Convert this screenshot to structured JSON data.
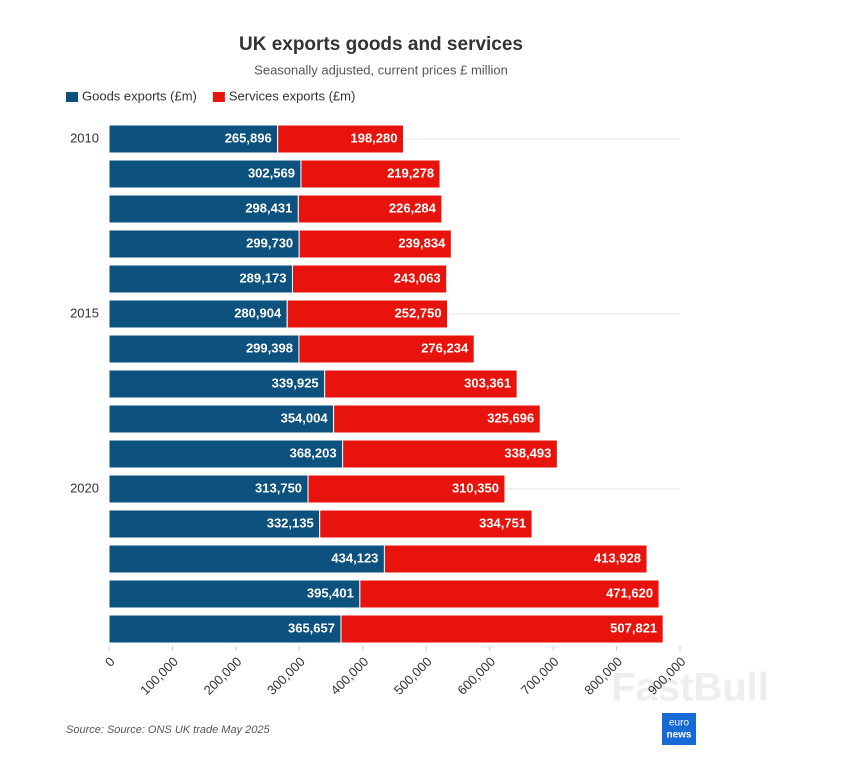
{
  "chart_data": {
    "type": "stacked-barh",
    "title": "UK exports goods and services",
    "subtitle": "Seasonally adjusted, current prices £ million",
    "categories": [
      "2010",
      null,
      null,
      null,
      null,
      "2015",
      null,
      null,
      null,
      null,
      "2020",
      null,
      null,
      null,
      null
    ],
    "series": [
      {
        "name": "Goods exports (£m)",
        "color": "#0d527e",
        "values": [
          265896,
          302569,
          298431,
          299730,
          289173,
          280904,
          299398,
          339925,
          354004,
          368203,
          313750,
          332135,
          434123,
          395401,
          365657
        ],
        "value_labels": [
          "265,896",
          "302,569",
          "298,431",
          "299,730",
          "289,173",
          "280,904",
          "299,398",
          "339,925",
          "354,004",
          "368,203",
          "313,750",
          "332,135",
          "434,123",
          "395,401",
          "365,657"
        ]
      },
      {
        "name": "Services exports (£m)",
        "color": "#e8130c",
        "values": [
          198280,
          219278,
          226284,
          239834,
          243063,
          252750,
          276234,
          303361,
          325696,
          338493,
          310350,
          334751,
          413928,
          471620,
          507821
        ],
        "value_labels": [
          "198,280",
          "219,278",
          "226,284",
          "239,834",
          "243,063",
          "252,750",
          "276,234",
          "303,361",
          "325,696",
          "338,493",
          "310,350",
          "334,751",
          "413,928",
          "471,620",
          "507,821"
        ]
      }
    ],
    "xlim": [
      0,
      900000
    ],
    "xticks": [
      0,
      {
        "value": 100000,
        "label": "100,000"
      },
      {
        "value": 200000,
        "label": "200,000"
      },
      {
        "value": 300000,
        "label": "300,000"
      },
      {
        "value": 400000,
        "label": "400,000"
      },
      {
        "value": 500000,
        "label": "500,000"
      },
      {
        "value": 600000,
        "label": "600,000"
      },
      {
        "value": 700000,
        "label": "700,000"
      },
      {
        "value": 800000,
        "label": "800,000"
      },
      {
        "value": 900000,
        "label": "900,000"
      }
    ],
    "legend": "top-left",
    "grid": true,
    "source": "Source: Source: ONS UK trade May 2025"
  },
  "logo": [
    "euro",
    "news"
  ],
  "watermark": "FastBull"
}
